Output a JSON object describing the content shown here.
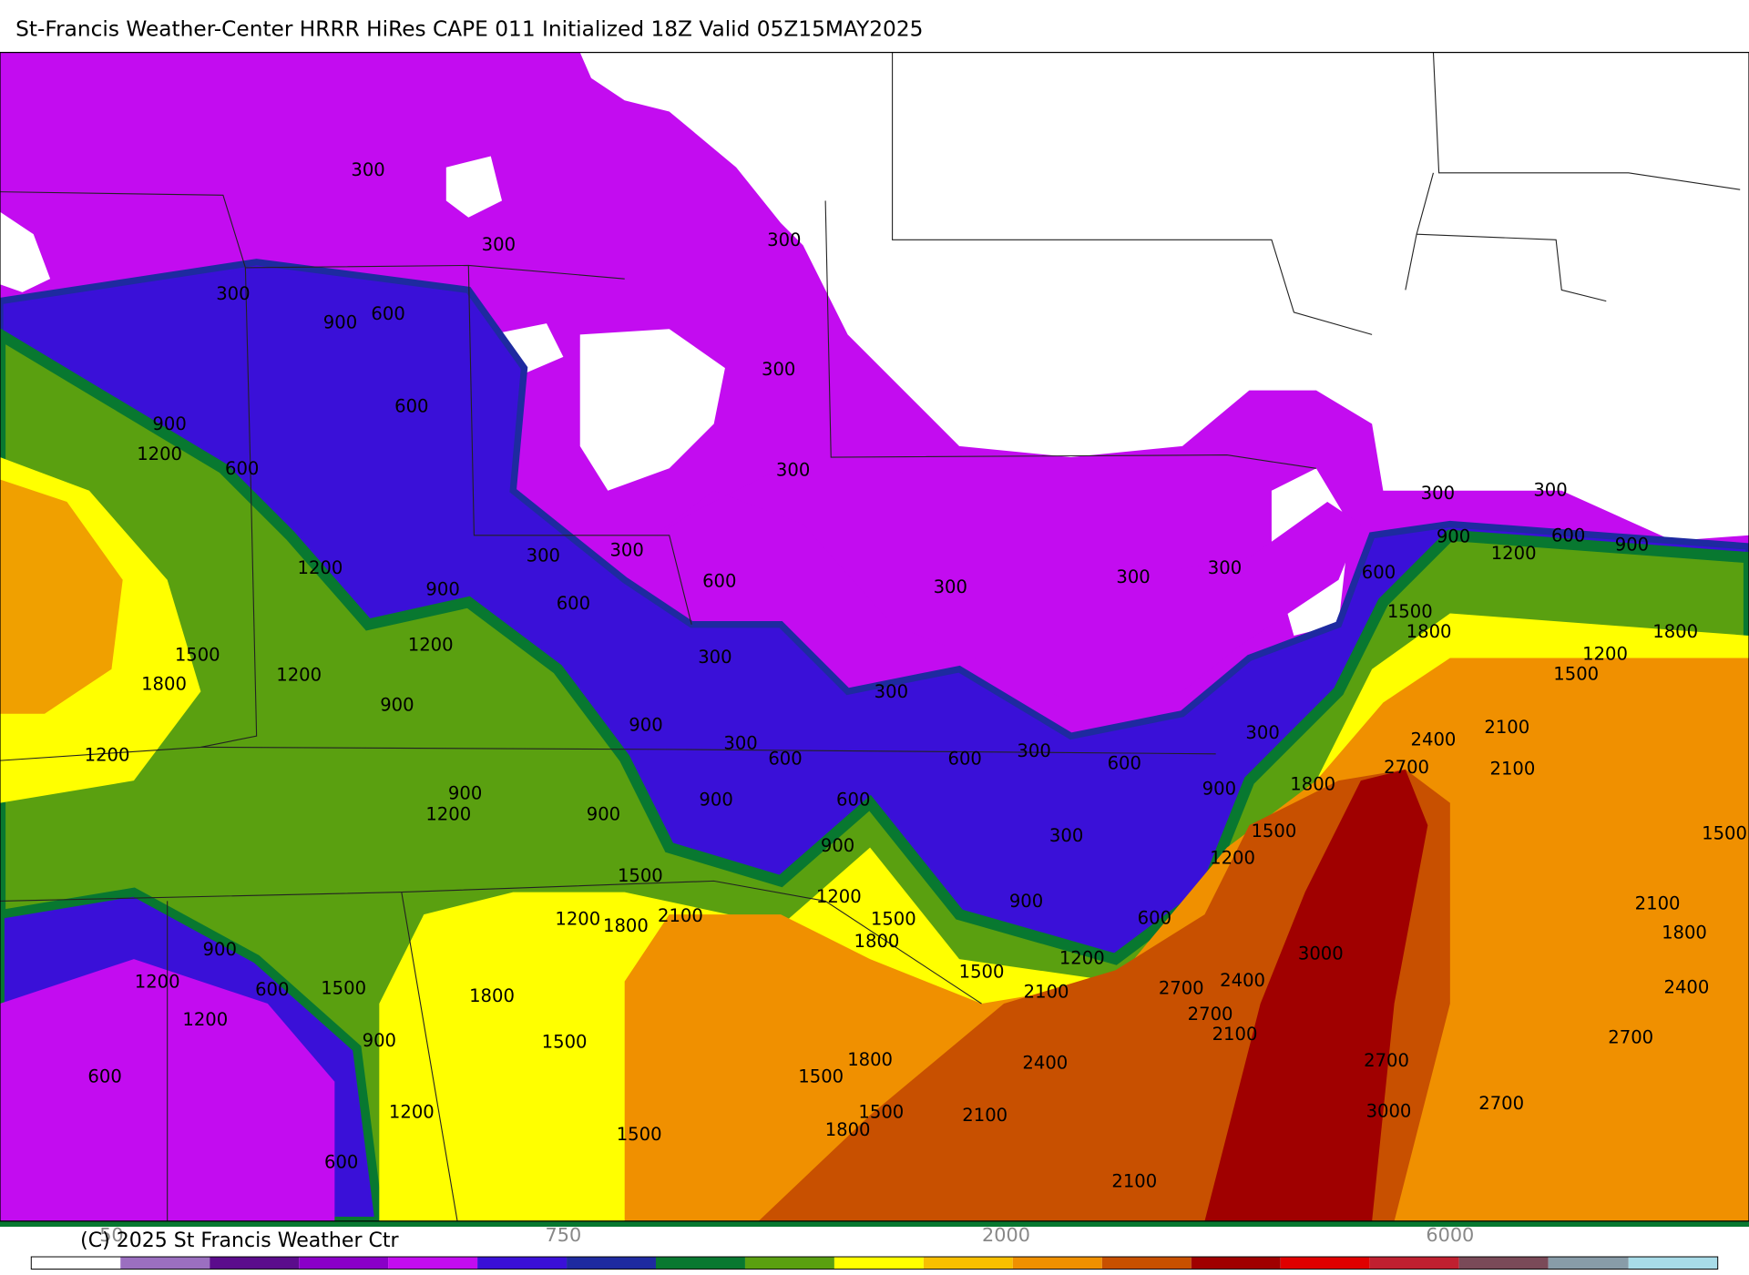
{
  "header": {
    "title": "St-Francis Weather-Center HRRR HiRes CAPE  011 Initialized  18Z Valid 05Z15MAY2025"
  },
  "contour_labels": [
    300,
    300,
    300,
    600,
    900,
    300,
    300,
    600,
    900,
    1200,
    600,
    300,
    300,
    300,
    1200,
    900,
    600,
    600,
    300,
    300,
    300,
    300,
    300,
    900,
    1200,
    600,
    900,
    600,
    1500,
    1800,
    1800,
    1200,
    1500,
    1500,
    1800,
    1200,
    1200,
    900,
    300,
    300,
    900,
    300,
    600,
    600,
    300,
    600,
    300,
    2400,
    2100,
    2100,
    2700,
    1200,
    900,
    1200,
    900,
    900,
    600,
    900,
    900,
    1800,
    1500,
    1200,
    300,
    1500,
    2100,
    1800,
    1200,
    1500,
    1500,
    1800,
    1200,
    1800,
    2100,
    900,
    600,
    1200,
    3000,
    900,
    1200,
    600,
    1500,
    1800,
    1500,
    2100,
    2700,
    2400,
    2700,
    2100,
    2400,
    1200,
    900,
    1500,
    600,
    1800,
    1500,
    2400,
    2700,
    2700,
    1200,
    1500,
    2100,
    3000,
    2700,
    1500,
    1800,
    600,
    2100
  ],
  "colorbar": {
    "labels": [
      "50",
      "750",
      "2000",
      "6000"
    ]
  },
  "footer": {
    "copyright": "(C) 2025 St Francis Weather Ctr"
  }
}
